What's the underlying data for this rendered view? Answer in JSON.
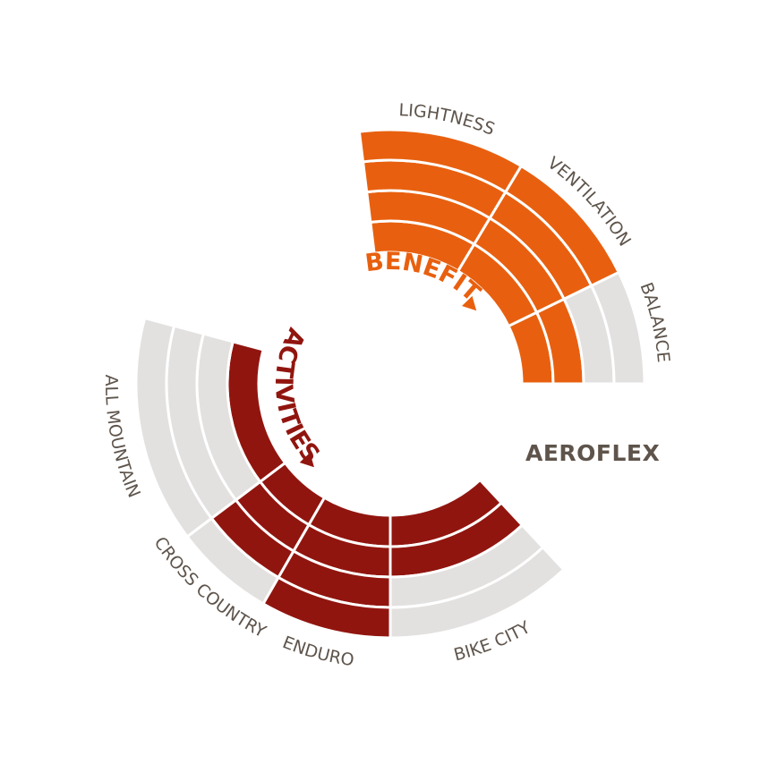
{
  "product": {
    "name": "AEROFLEX"
  },
  "colors": {
    "benefits": "#e8600f",
    "activities": "#91150f",
    "empty": "#e3e1e0",
    "label": "#5e544b",
    "background": "#ffffff"
  },
  "chart_data": [
    {
      "type": "radial-bar",
      "group": "BENEFITS",
      "max_level": 4,
      "categories": [
        "LIGHTNESS",
        "VENTILATION",
        "BALANCE"
      ],
      "values": [
        4,
        4,
        2
      ]
    },
    {
      "type": "radial-bar",
      "group": "ACTIVITIES",
      "max_level": 4,
      "categories": [
        "ALL MOUNTAIN",
        "CROSS COUNTRY",
        "ENDURO",
        "BIKE CITY"
      ],
      "values": [
        1,
        3,
        4,
        2
      ]
    }
  ]
}
